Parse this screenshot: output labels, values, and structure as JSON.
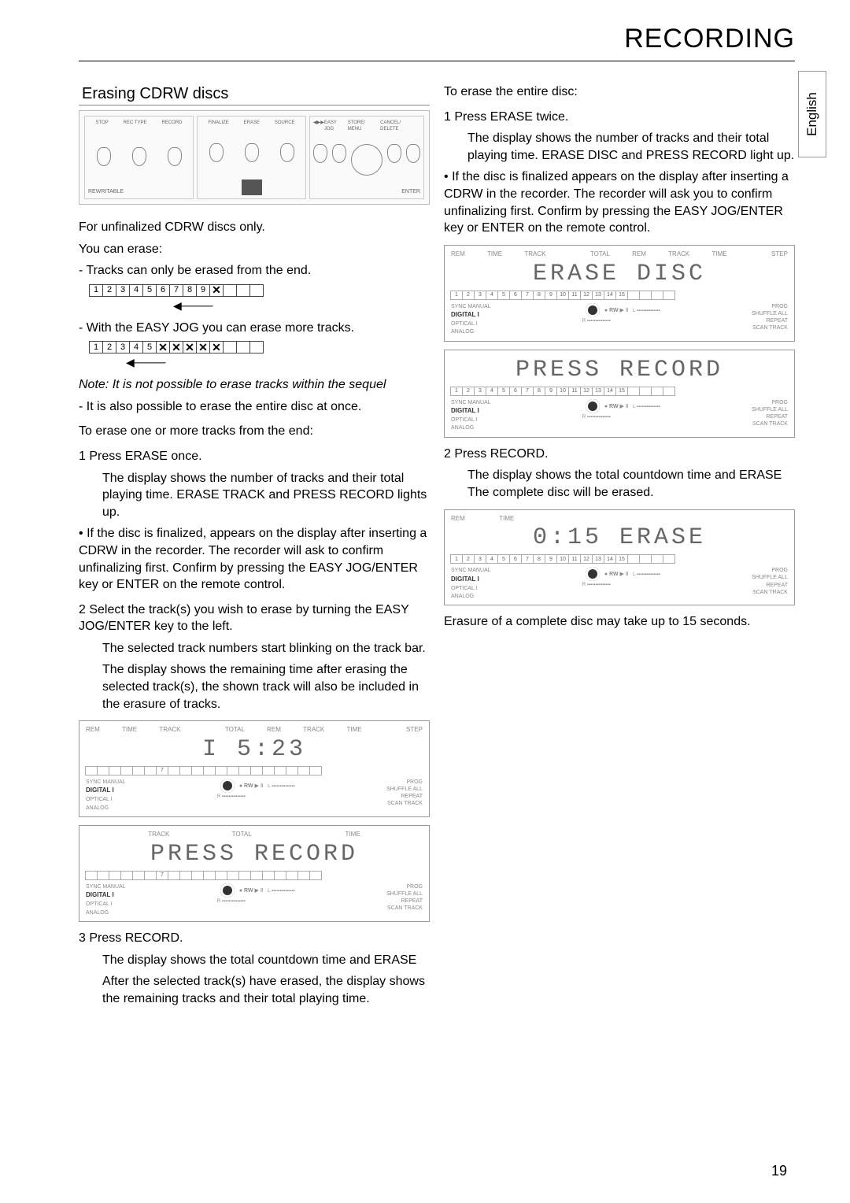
{
  "header": {
    "title": "RECORDING"
  },
  "language_tab": "English",
  "page_number": "19",
  "left": {
    "section_title": "Erasing CDRW discs",
    "panel": {
      "labels1": [
        "STOP",
        "REC TYPE",
        "RECORD"
      ],
      "labels2": [
        "FINALIZE",
        "ERASE",
        "SOURCE"
      ],
      "labels3": [
        "◀",
        "▶▶",
        "EASY JOG",
        "STORE/ MENU",
        "CANCEL/ DELETE"
      ],
      "rewritable": "REWRITABLE",
      "enter": "ENTER"
    },
    "intro1": "For unfinalized CDRW discs only.",
    "intro2": "You can erase:",
    "bullet1": "- Tracks can only be erased from the end.",
    "strip1": [
      "1",
      "2",
      "3",
      "4",
      "5",
      "6",
      "7",
      "8",
      "9",
      "✕",
      "",
      "",
      ""
    ],
    "bullet2": "- With the EASY JOG you can erase more tracks.",
    "strip2": [
      "1",
      "2",
      "3",
      "4",
      "5",
      "✕",
      "✕",
      "✕",
      "✕",
      "✕",
      "",
      "",
      ""
    ],
    "note": "Note: It is not possible to erase tracks within the sequel",
    "bullet3": "- It is also possible to erase the entire disc at once.",
    "heading1": "To erase one or more tracks from the end:",
    "step1_n": "1",
    "step1_t": "Press ERASE once.",
    "step1_body": "The display shows the number of tracks and their total playing time. ERASE TRACK and PRESS RECORD lights up.",
    "bullet4_pre": "•",
    "bullet4": "If the disc is finalized, appears on the display after inserting a CDRW in the recorder. The recorder will ask to confirm unfinalizing first. Confirm by pressing the EASY JOG/ENTER key or ENTER on the remote control.",
    "step2_n": "2",
    "step2_t": "Select the track(s) you wish to erase by turning the EASY JOG/ENTER key to the left.",
    "step2_b1": "The selected track numbers start blinking on the track bar.",
    "step2_b2": "The display shows the remaining time after erasing the selected track(s), the shown track will also be included in the erasure of tracks.",
    "lcd1": {
      "top": [
        "REM",
        "TIME",
        "TRACK",
        "",
        "TOTAL",
        "REM",
        "TRACK",
        "TIME",
        "",
        "STEP"
      ],
      "seg": "I        5:23",
      "bar_hl": [
        7
      ],
      "digital": "DIGITAL I",
      "opt": "OPTICAL I",
      "ana": "ANALOG",
      "rw": "RW",
      "prog": "PROG",
      "shuf": "SHUFFLE  ALL",
      "rep": "REPEAT",
      "scan": "SCAN  TRACK"
    },
    "lcd2": {
      "top": [
        "",
        "",
        "TRACK",
        "",
        "TOTAL",
        "",
        "",
        "TIME",
        "",
        ""
      ],
      "seg": "PRESS  RECORD",
      "bar_hl": [
        7
      ],
      "digital": "DIGITAL I",
      "opt": "OPTICAL I",
      "ana": "ANALOG",
      "rw": "RW",
      "prog": "PROG",
      "shuf": "SHUFFLE  ALL",
      "rep": "REPEAT",
      "scan": "SCAN  TRACK"
    },
    "step3_n": "3",
    "step3_t": "Press RECORD.",
    "step3_b1": "The display shows the total countdown time and ERASE",
    "step3_b2": "After the selected track(s) have erased, the display shows the remaining tracks and their total playing time."
  },
  "right": {
    "heading": "To erase the entire disc:",
    "step1_n": "1",
    "step1_t": "Press ERASE twice.",
    "step1_body": "The display shows the number of tracks and their total playing time. ERASE DISC and PRESS RECORD light up.",
    "bullet_pre": "•",
    "bullet": "If the disc is finalized appears on the display after inserting a CDRW in the recorder. The recorder will ask you to confirm unfinalizing first. Confirm by pressing the EASY JOG/ENTER key or ENTER on the remote control.",
    "lcd1": {
      "top": [
        "REM",
        "TIME",
        "TRACK",
        "",
        "TOTAL",
        "REM",
        "TRACK",
        "TIME",
        "",
        "STEP"
      ],
      "seg": "ERASE   DISC",
      "bar": [
        "1",
        "2",
        "3",
        "4",
        "5",
        "6",
        "7",
        "8",
        "9",
        "10",
        "11",
        "12",
        "13",
        "14",
        "15",
        "",
        "",
        "",
        ""
      ],
      "digital": "DIGITAL I",
      "opt": "OPTICAL I",
      "ana": "ANALOG",
      "rw": "RW",
      "prog": "PROG",
      "shuf": "SHUFFLE  ALL",
      "rep": "REPEAT",
      "scan": "SCAN  TRACK"
    },
    "lcd2": {
      "top": [
        "",
        "",
        "",
        "",
        "",
        "",
        "",
        "",
        "",
        ""
      ],
      "seg": "PRESS  RECORD",
      "bar": [
        "1",
        "2",
        "3",
        "4",
        "5",
        "6",
        "7",
        "8",
        "9",
        "10",
        "11",
        "12",
        "13",
        "14",
        "15",
        "",
        "",
        "",
        ""
      ],
      "digital": "DIGITAL I",
      "opt": "OPTICAL I",
      "ana": "ANALOG",
      "rw": "RW",
      "prog": "PROG",
      "shuf": "SHUFFLE  ALL",
      "rep": "REPEAT",
      "scan": "SCAN  TRACK"
    },
    "step2_n": "2",
    "step2_t": "Press RECORD.",
    "step2_b1": "The display shows the total countdown time and ERASE  The complete disc will be erased.",
    "lcd3": {
      "top": [
        "REM",
        "TIME",
        "",
        "",
        "",
        "",
        "",
        "",
        "",
        ""
      ],
      "seg": "0:15  ERASE",
      "bar": [
        "1",
        "2",
        "3",
        "4",
        "5",
        "6",
        "7",
        "8",
        "9",
        "10",
        "11",
        "12",
        "13",
        "14",
        "15",
        "",
        "",
        "",
        ""
      ],
      "digital": "DIGITAL I",
      "opt": "OPTICAL I",
      "ana": "ANALOG",
      "rw": "RW",
      "prog": "PROG",
      "shuf": "SHUFFLE  ALL",
      "rep": "REPEAT",
      "scan": "SCAN  TRACK"
    },
    "tail": "Erasure of a complete disc may take up to 15 seconds."
  }
}
